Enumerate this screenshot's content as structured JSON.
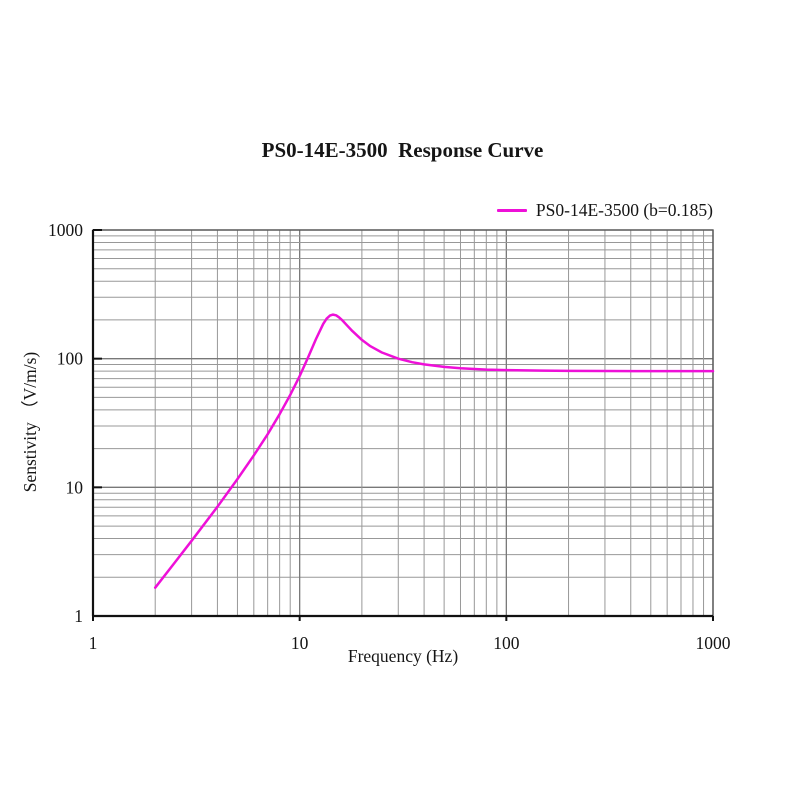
{
  "page": {
    "background": "#ffffff",
    "text_color": "#151515"
  },
  "chart_data": {
    "type": "line",
    "title": "PS0-14E-3500  Response Curve",
    "xlabel": "Frequency (Hz)",
    "ylabel": "Senstivity （V/m/s)",
    "x_scale": "log",
    "y_scale": "log",
    "xlim": [
      1,
      1000
    ],
    "ylim": [
      1,
      1000
    ],
    "x_ticks": [
      "1",
      "10",
      "100",
      "1000"
    ],
    "y_ticks": [
      "1000",
      "100",
      "10",
      "1"
    ],
    "x_tick_values": [
      1,
      10,
      100,
      1000
    ],
    "y_tick_values": [
      1000,
      100,
      10,
      1
    ],
    "grid": {
      "show": true,
      "minor": true,
      "major_color": "#787878",
      "minor_color": "#989898",
      "frame_color": "#5a5a5a",
      "axis_color": "#111111"
    },
    "legend": {
      "position": "top-right",
      "entries": [
        {
          "label": "PS0-14E-3500 (b=0.185)",
          "color": "#ee10d8"
        }
      ]
    },
    "series": [
      {
        "name": "PS0-14E-3500 (b=0.185)",
        "color": "#ee10d8",
        "points": [
          [
            2,
            1.66
          ],
          [
            2.5,
            2.63
          ],
          [
            3,
            3.84
          ],
          [
            4,
            7.06
          ],
          [
            5,
            11.6
          ],
          [
            6,
            17.7
          ],
          [
            7,
            25.9
          ],
          [
            8,
            37.0
          ],
          [
            9,
            52.2
          ],
          [
            10,
            73.3
          ],
          [
            11,
            102.8
          ],
          [
            12,
            142.1
          ],
          [
            13,
            186.4
          ],
          [
            13.5,
            204.6
          ],
          [
            14,
            216.2
          ],
          [
            14.5,
            220.0
          ],
          [
            15,
            217.1
          ],
          [
            15.5,
            209.7
          ],
          [
            16,
            200.2
          ],
          [
            17,
            180.5
          ],
          [
            18,
            163.7
          ],
          [
            20,
            139.9
          ],
          [
            22,
            125.0
          ],
          [
            25,
            111.6
          ],
          [
            30,
            99.9
          ],
          [
            35,
            93.8
          ],
          [
            40,
            90.2
          ],
          [
            50,
            86.3
          ],
          [
            60,
            84.3
          ],
          [
            80,
            82.3
          ],
          [
            100,
            81.5
          ],
          [
            150,
            80.7
          ],
          [
            200,
            80.4
          ],
          [
            300,
            80.2
          ],
          [
            500,
            80.1
          ],
          [
            700,
            80.0
          ],
          [
            1000,
            80.0
          ]
        ]
      }
    ]
  }
}
